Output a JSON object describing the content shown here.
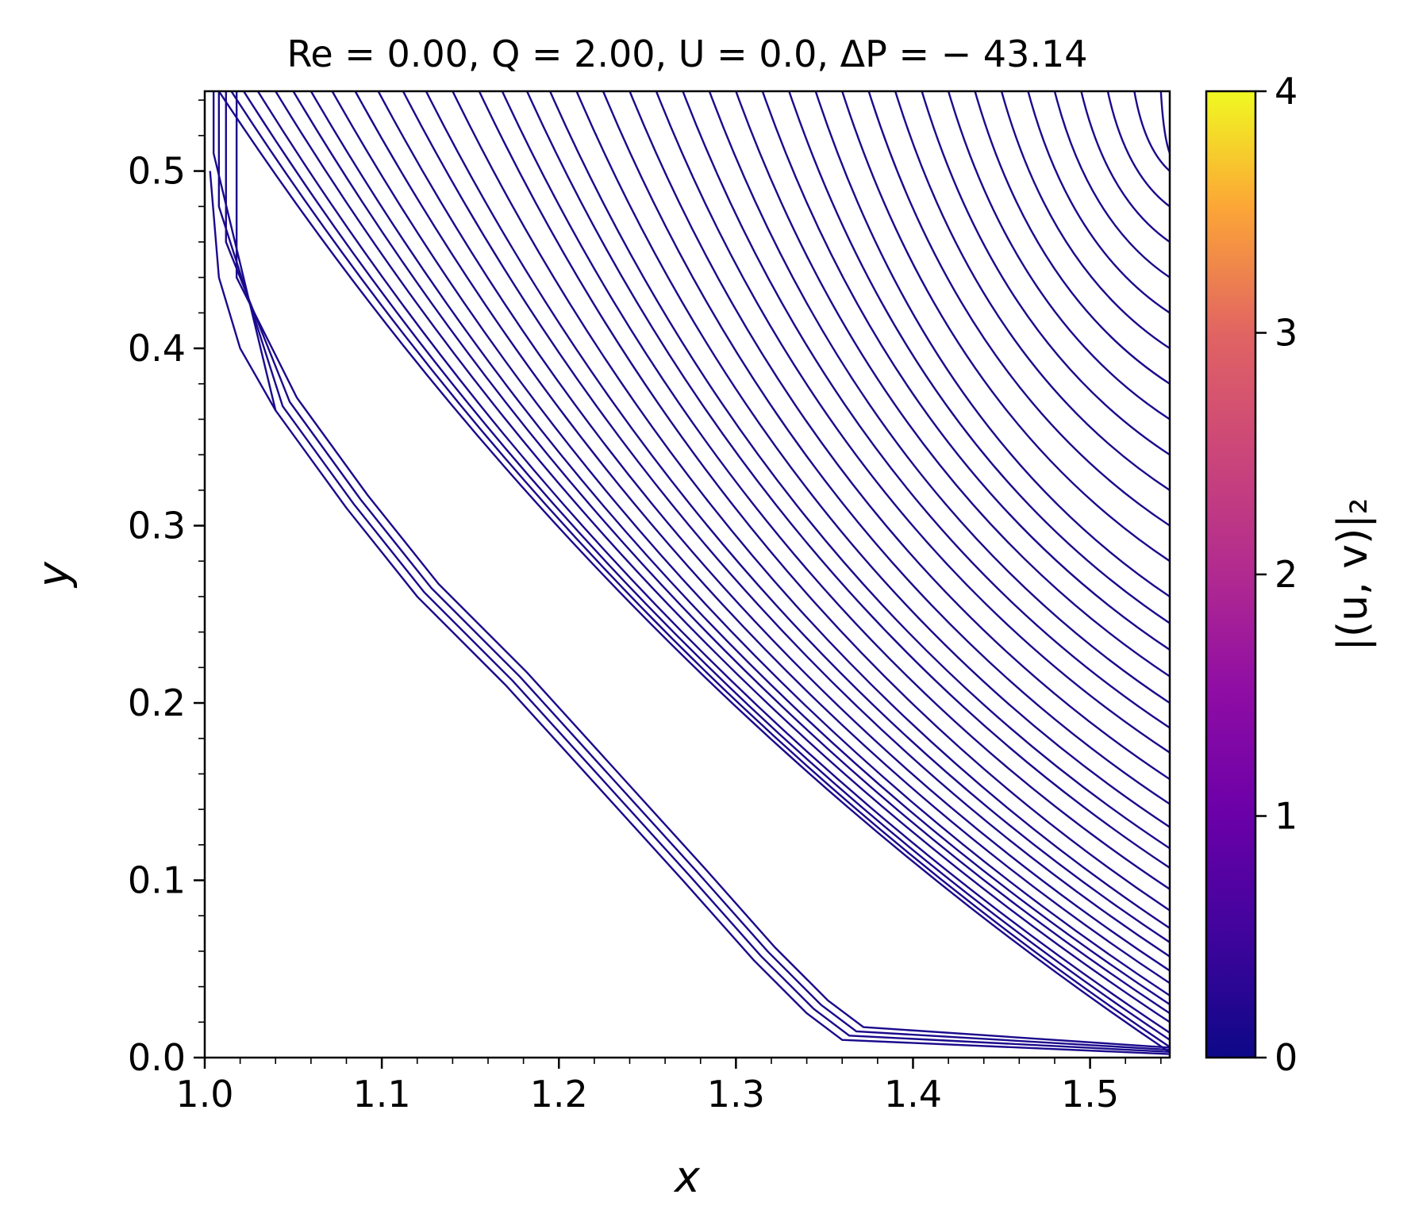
{
  "chart_data": {
    "type": "streamlines",
    "title": "Re = 0.00, Q = 2.00, U = 0.0, ΔP = − 43.14",
    "xlabel": "x",
    "ylabel": "y",
    "xlim": [
      1.0,
      1.545
    ],
    "ylim": [
      0.0,
      0.545
    ],
    "x_ticks": [
      "1.0",
      "1.1",
      "1.2",
      "1.3",
      "1.4",
      "1.5"
    ],
    "y_ticks": [
      "0.0",
      "0.1",
      "0.2",
      "0.3",
      "0.4",
      "0.5"
    ],
    "line_color": "#1a0a8c",
    "colorbar": {
      "label": "|(u, v)|₂",
      "colormap": "plasma",
      "range": [
        0,
        4
      ],
      "ticks": [
        "0",
        "1",
        "2",
        "3",
        "4"
      ]
    },
    "streamline_top_x": [
      1.008,
      1.015,
      1.022,
      1.03,
      1.04,
      1.05,
      1.06,
      1.072,
      1.085,
      1.098,
      1.112,
      1.125,
      1.14,
      1.155,
      1.168,
      1.182,
      1.195,
      1.21,
      1.225,
      1.24,
      1.255,
      1.27,
      1.285,
      1.3,
      1.315,
      1.33,
      1.345,
      1.36,
      1.375,
      1.39,
      1.405,
      1.42,
      1.435,
      1.45,
      1.465,
      1.48,
      1.495,
      1.51,
      1.525,
      1.54
    ],
    "streamline_right_y": [
      0.003,
      0.006,
      0.01,
      0.014,
      0.02,
      0.025,
      0.03,
      0.035,
      0.042,
      0.049,
      0.057,
      0.065,
      0.073,
      0.083,
      0.095,
      0.107,
      0.118,
      0.13,
      0.143,
      0.157,
      0.172,
      0.186,
      0.2,
      0.215,
      0.23,
      0.245,
      0.26,
      0.28,
      0.3,
      0.32,
      0.34,
      0.36,
      0.38,
      0.4,
      0.42,
      0.44,
      0.46,
      0.48,
      0.5,
      0.51
    ],
    "streamline_inner_start": [
      [
        1.005,
        0.51
      ],
      [
        1.008,
        0.48
      ],
      [
        1.012,
        0.46
      ],
      [
        1.018,
        0.44
      ]
    ],
    "boundary_curve": [
      [
        1.04,
        0.365
      ],
      [
        1.08,
        0.31
      ],
      [
        1.12,
        0.26
      ],
      [
        1.17,
        0.21
      ],
      [
        1.22,
        0.155
      ],
      [
        1.27,
        0.1
      ],
      [
        1.31,
        0.055
      ],
      [
        1.34,
        0.025
      ],
      [
        1.36,
        0.01
      ]
    ]
  }
}
